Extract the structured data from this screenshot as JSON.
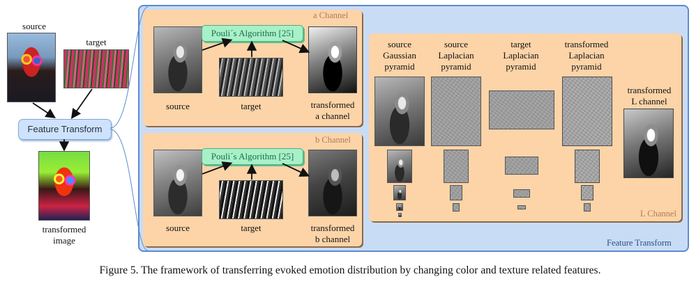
{
  "left": {
    "source_label": "source",
    "target_label": "target",
    "feature_transform_box": "Feature Transform",
    "transformed_label_line1": "transformed",
    "transformed_label_line2": "image"
  },
  "a_panel": {
    "title": "a Channel",
    "algorithm": "Pouli´s Algorithm [25]",
    "source_label": "source",
    "target_label": "target",
    "out_line1": "transformed",
    "out_line2": "a channel"
  },
  "b_panel": {
    "title": "b Channel",
    "algorithm": "Pouli´s Algorithm [25]",
    "source_label": "source",
    "target_label": "target",
    "out_line1": "transformed",
    "out_line2": "b channel"
  },
  "l_panel": {
    "title": "L Channel",
    "columns": [
      [
        "source",
        "Gaussian",
        "pyramid"
      ],
      [
        "source",
        "Laplacian",
        "pyramid"
      ],
      [
        "target",
        "Laplacian",
        "pyramid"
      ],
      [
        "transformed",
        "Laplacian",
        "pyramid"
      ]
    ],
    "out_line1": "transformed",
    "out_line2": "L channel"
  },
  "outer_label": "Feature Transform",
  "caption": "Figure 5. The framework of transferring evoked emotion distribution by changing color and texture related features.",
  "colors": {
    "outer_bg": "#c9dcf5",
    "outer_border": "#5b8bd0",
    "panel_bg": "#fcd4a8",
    "panel_border": "#8a6a4a",
    "algo_bg": "#a8f0c8",
    "ft_box_bg": "#cfe2fb"
  }
}
